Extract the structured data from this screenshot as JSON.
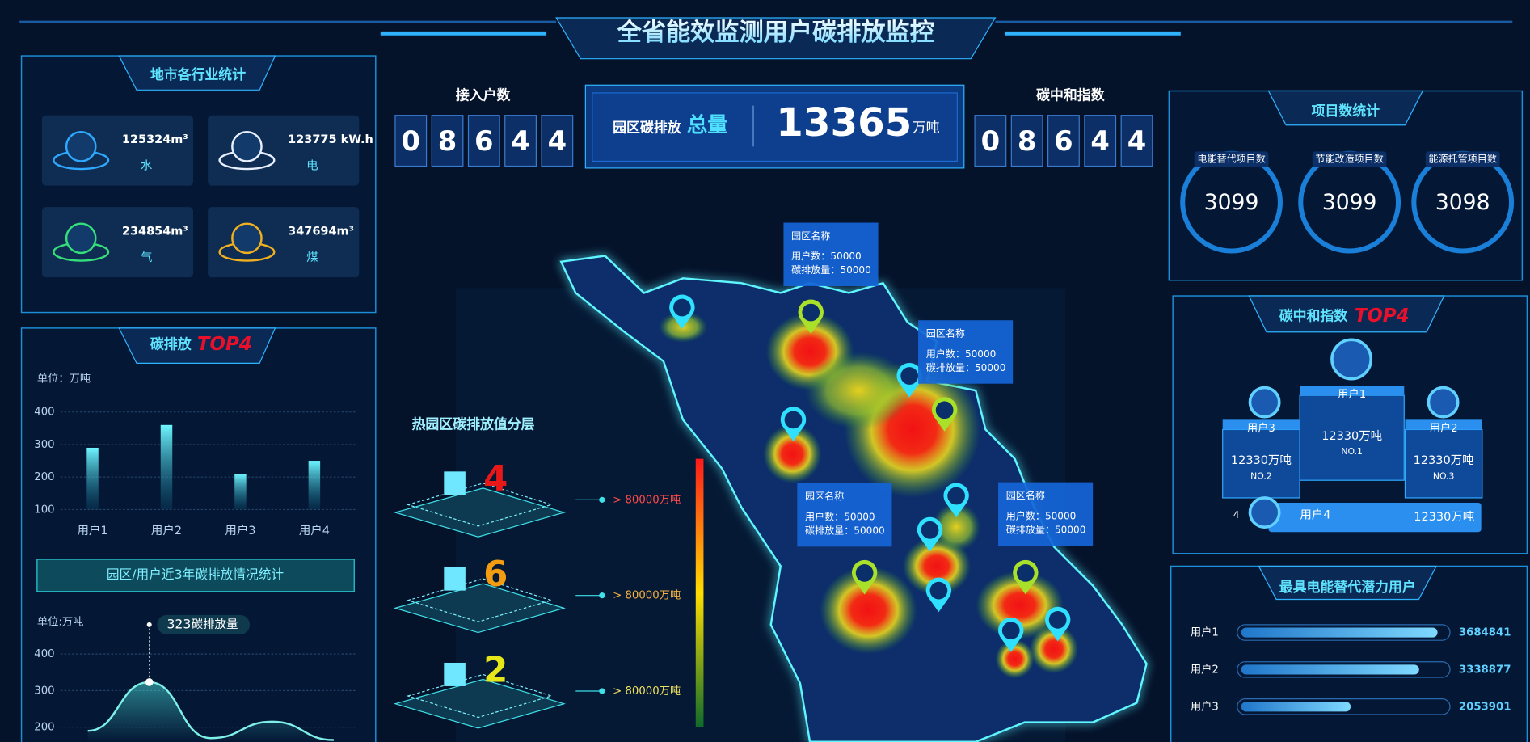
{
  "header": {
    "title": "全省能效监测用户碳排放监控"
  },
  "industry_stats": {
    "title": "地市各行业统计",
    "items": [
      {
        "value": "125324m³",
        "label": "水"
      },
      {
        "value": "123775 kW.h",
        "label": "电"
      },
      {
        "value": "234854m³",
        "label": "气"
      },
      {
        "value": "347694m³",
        "label": "煤"
      }
    ]
  },
  "emission_top4": {
    "title": "碳排放",
    "title_em": "TOP4",
    "unit": "单位：万吨",
    "categories": [
      "用户1",
      "用户2",
      "用户3",
      "用户4"
    ],
    "values": [
      290,
      360,
      210,
      250
    ],
    "ylim": [
      100,
      400
    ],
    "yticks": [
      100,
      200,
      300,
      400
    ]
  },
  "trend": {
    "title": "园区/用户近3年碳排放情况统计",
    "unit": "单位:万吨",
    "tooltip_label": "碳排放量",
    "categories": [
      null,
      null,
      null,
      null,
      null
    ],
    "values": [
      190,
      323,
      170,
      215,
      165
    ],
    "ylim": [
      160,
      480
    ],
    "yticks": [
      200,
      300,
      400
    ]
  },
  "access_count": {
    "title": "接入户数",
    "digits": [
      "0",
      "8",
      "6",
      "4",
      "4"
    ]
  },
  "total": {
    "label": "园区碳排放",
    "label_em": "总量",
    "value": "13365",
    "unit": "万吨"
  },
  "neutral_index": {
    "title": "碳中和指数",
    "digits": [
      "0",
      "8",
      "6",
      "4",
      "4"
    ]
  },
  "heat_layers": {
    "title": "热园区碳排放值分层",
    "tiers": [
      {
        "count": "4",
        "label": "> 80000万吨"
      },
      {
        "count": "6",
        "label": "> 80000万吨"
      },
      {
        "count": "2",
        "label": "> 80000万吨"
      }
    ]
  },
  "popups": [
    {
      "title": "园区名称",
      "users": "用户数：50000",
      "emission": "碳排放量：50000"
    },
    {
      "title": "园区名称",
      "users": "用户数：50000",
      "emission": "碳排放量：50000"
    },
    {
      "title": "园区名称",
      "users": "用户数：50000",
      "emission": "碳排放量：50000"
    },
    {
      "title": "园区名称",
      "users": "用户数：50000",
      "emission": "碳排放量：50000"
    }
  ],
  "projects": {
    "title": "项目数统计",
    "items": [
      {
        "label": "电能替代项目数",
        "value": "3099"
      },
      {
        "label": "节能改造项目数",
        "value": "3099"
      },
      {
        "label": "能源托管项目数",
        "value": "3098"
      }
    ]
  },
  "neutral_top4": {
    "title": "碳中和指数",
    "title_em": "TOP4",
    "ranks": [
      {
        "name": "用户1",
        "value": "12330万吨",
        "rank": "NO.1"
      },
      {
        "name": "用户2",
        "value": "12330万吨",
        "rank": "NO.3"
      },
      {
        "name": "用户3",
        "value": "12330万吨",
        "rank": "NO.2"
      },
      {
        "name": "用户4",
        "value": "12330万吨",
        "rank": "4"
      }
    ]
  },
  "potential": {
    "title": "最具电能替代潜力用户",
    "categories": [
      "用户1",
      "用户2",
      "用户3"
    ],
    "values": [
      3684841,
      3338877,
      2053901
    ],
    "xlim": [
      0,
      3900000
    ]
  }
}
